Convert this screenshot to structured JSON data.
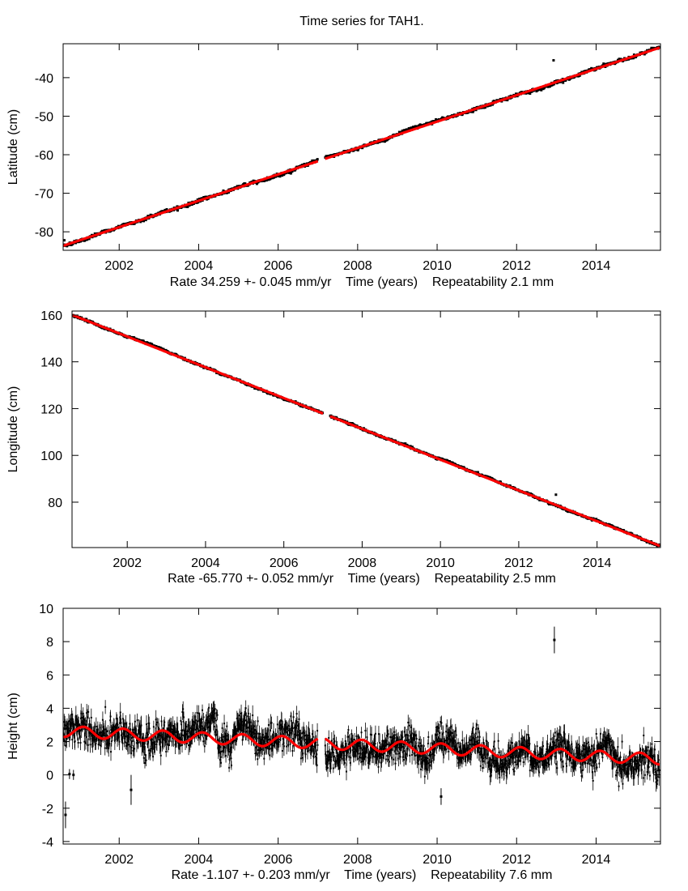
{
  "title": "Time series for TAH1.",
  "colors": {
    "data": "#000000",
    "fit": "#ff0000",
    "frame": "#000000"
  },
  "chart_data": [
    {
      "type": "scatter",
      "ylabel": "Latitude (cm)",
      "xlabel": "Rate 34.259 +- 0.045 mm/yr    Time (years)    Repeatability 2.1 mm",
      "xlim": [
        2000.59,
        2015.62
      ],
      "ylim": [
        -84.8,
        -31.2
      ],
      "xticks": [
        2002,
        2004,
        2006,
        2008,
        2010,
        2012,
        2014
      ],
      "yticks": [
        -80,
        -70,
        -60,
        -50,
        -40
      ],
      "grid": false,
      "fit": {
        "type": "linear",
        "rate_cm_per_yr": 3.4259,
        "value_at_start": -83.6,
        "start": 2000.6,
        "end": 2015.6
      },
      "data_gap": [
        2007.0,
        2007.18
      ],
      "scatter_cm": 0.3,
      "outliers": [
        {
          "x": 2012.93,
          "y": -35.5
        },
        {
          "x": 2000.62,
          "y": -82.2
        }
      ]
    },
    {
      "type": "scatter",
      "ylabel": "Longitude (cm)",
      "xlabel": "Rate -65.770 +- 0.052 mm/yr    Time (years)    Repeatability 2.5 mm",
      "xlim": [
        2000.59,
        2015.62
      ],
      "ylim": [
        60.6,
        161.7
      ],
      "xticks": [
        2002,
        2004,
        2006,
        2008,
        2010,
        2012,
        2014
      ],
      "yticks": [
        80,
        100,
        120,
        140,
        160
      ],
      "grid": false,
      "fit": {
        "type": "linear",
        "rate_cm_per_yr": -6.577,
        "value_at_start": 160.0,
        "start": 2000.6,
        "end": 2015.6
      },
      "data_gap": [
        2007.0,
        2007.18
      ],
      "scatter_cm": 0.35,
      "outliers": [
        {
          "x": 2012.95,
          "y": 83.2
        },
        {
          "x": 2006.95,
          "y": 118.3
        }
      ]
    },
    {
      "type": "scatter",
      "ylabel": "Height (cm)",
      "xlabel": "Rate -1.107 +- 0.203 mm/yr    Time (years)    Repeatability 7.6 mm",
      "xlim": [
        2000.59,
        2015.62
      ],
      "ylim": [
        -4.15,
        10
      ],
      "xticks": [
        2002,
        2004,
        2006,
        2008,
        2010,
        2012,
        2014
      ],
      "yticks": [
        -4,
        -2,
        0,
        2,
        4,
        6,
        8,
        10
      ],
      "grid": false,
      "error_bars": true,
      "fit": {
        "type": "linear+annual",
        "rate_cm_per_yr": -0.1107,
        "value_at_start": 2.61,
        "start": 2000.6,
        "end": 2015.6,
        "annual_amplitude_cm": 0.33,
        "annual_peak_phase_yr": 0.1
      },
      "data_gap": [
        2007.0,
        2007.18
      ],
      "scatter_cm": 0.75,
      "outliers": [
        {
          "x": 2012.95,
          "y": 8.1,
          "err": 0.8
        },
        {
          "x": 2000.65,
          "y": -2.4,
          "err": 0.8
        },
        {
          "x": 2002.3,
          "y": -0.9,
          "err": 0.9
        },
        {
          "x": 2010.1,
          "y": -1.3,
          "err": 0.5
        },
        {
          "x": 2000.75,
          "y": 0.05,
          "err": 0.3
        },
        {
          "x": 2000.85,
          "y": 0.0,
          "err": 0.3
        }
      ]
    }
  ]
}
